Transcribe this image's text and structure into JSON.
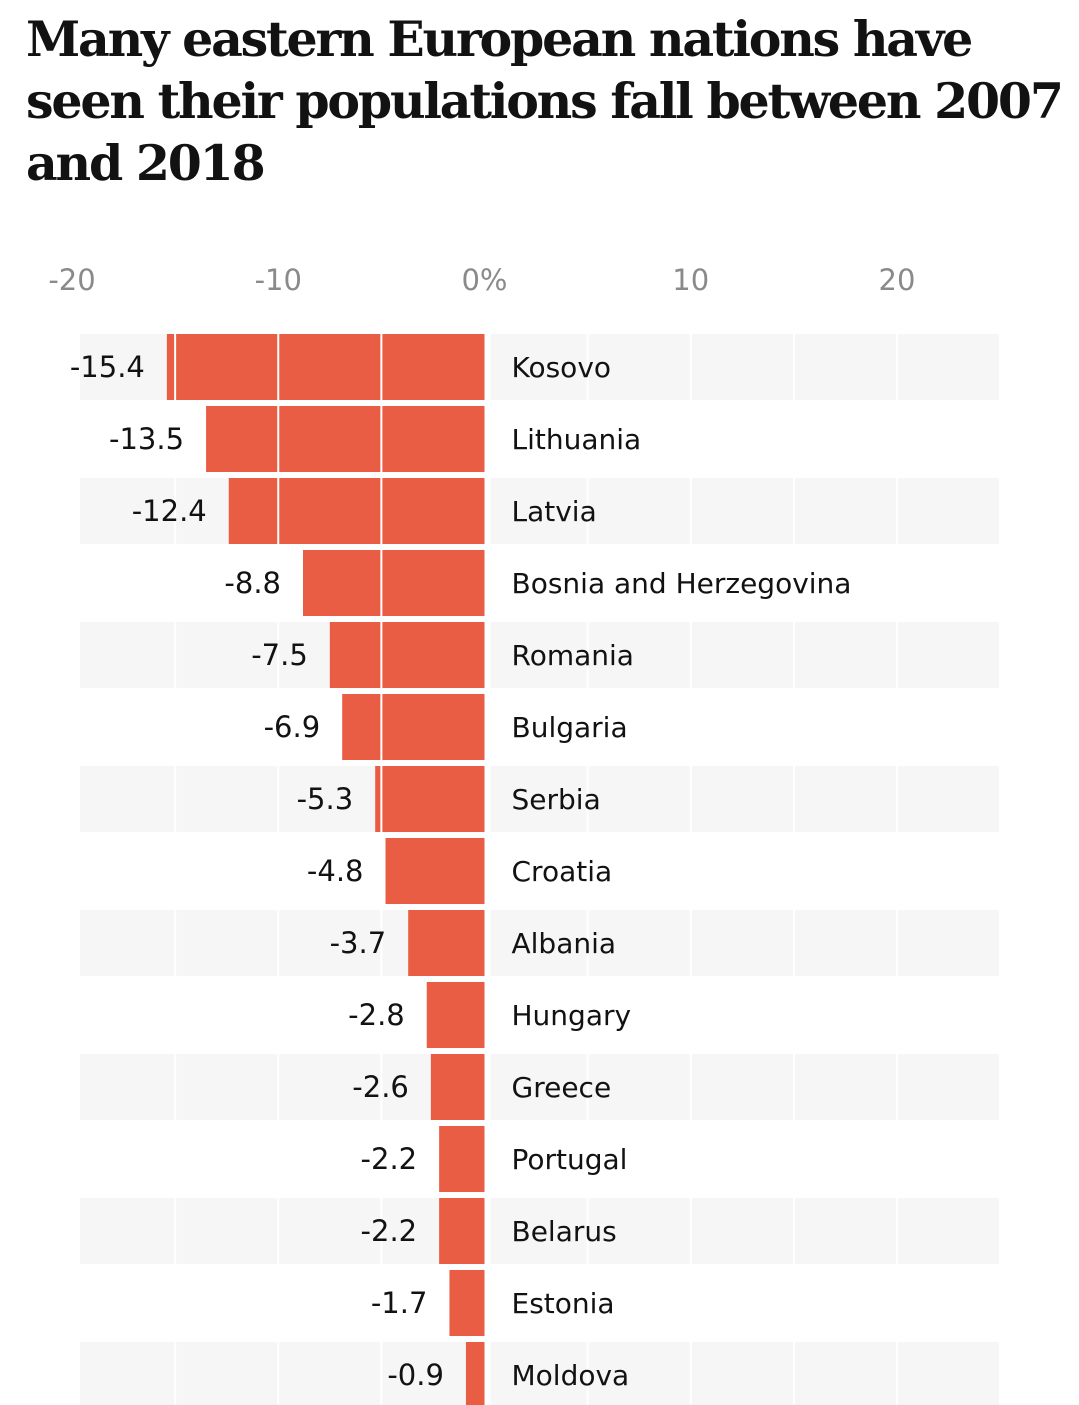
{
  "title": "Many eastern European nations have seen their populations fall between 2007 and 2018",
  "colors": {
    "bar": "#e95d45",
    "row_band": "#f6f6f6",
    "grid": "#ffffff",
    "tick_text": "#8a8a8a",
    "text": "#121212"
  },
  "chart_data": {
    "type": "bar",
    "orientation": "horizontal",
    "title": "Many eastern European nations have seen their populations fall between 2007 and 2018",
    "xlim": [
      -20,
      25
    ],
    "xticks": [
      -20,
      -10,
      0,
      10,
      20
    ],
    "xtick_labels": [
      "-20",
      "-10",
      "0%",
      "10",
      "20"
    ],
    "axis_position": "top",
    "grid": true,
    "row_banding": true,
    "categories": [
      "Kosovo",
      "Lithuania",
      "Latvia",
      "Bosnia and Herzegovina",
      "Romania",
      "Bulgaria",
      "Serbia",
      "Croatia",
      "Albania",
      "Hungary",
      "Greece",
      "Portugal",
      "Belarus",
      "Estonia",
      "Moldova"
    ],
    "values": [
      -15.4,
      -13.5,
      -12.4,
      -8.8,
      -7.5,
      -6.9,
      -5.3,
      -4.8,
      -3.7,
      -2.8,
      -2.6,
      -2.2,
      -2.2,
      -1.7,
      -0.9
    ],
    "value_labels": [
      "-15.4",
      "-13.5",
      "-12.4",
      "-8.8",
      "-7.5",
      "-6.9",
      "-5.3",
      "-4.8",
      "-3.7",
      "-2.8",
      "-2.6",
      "-2.2",
      "-2.2",
      "-1.7",
      "-0.9"
    ]
  }
}
